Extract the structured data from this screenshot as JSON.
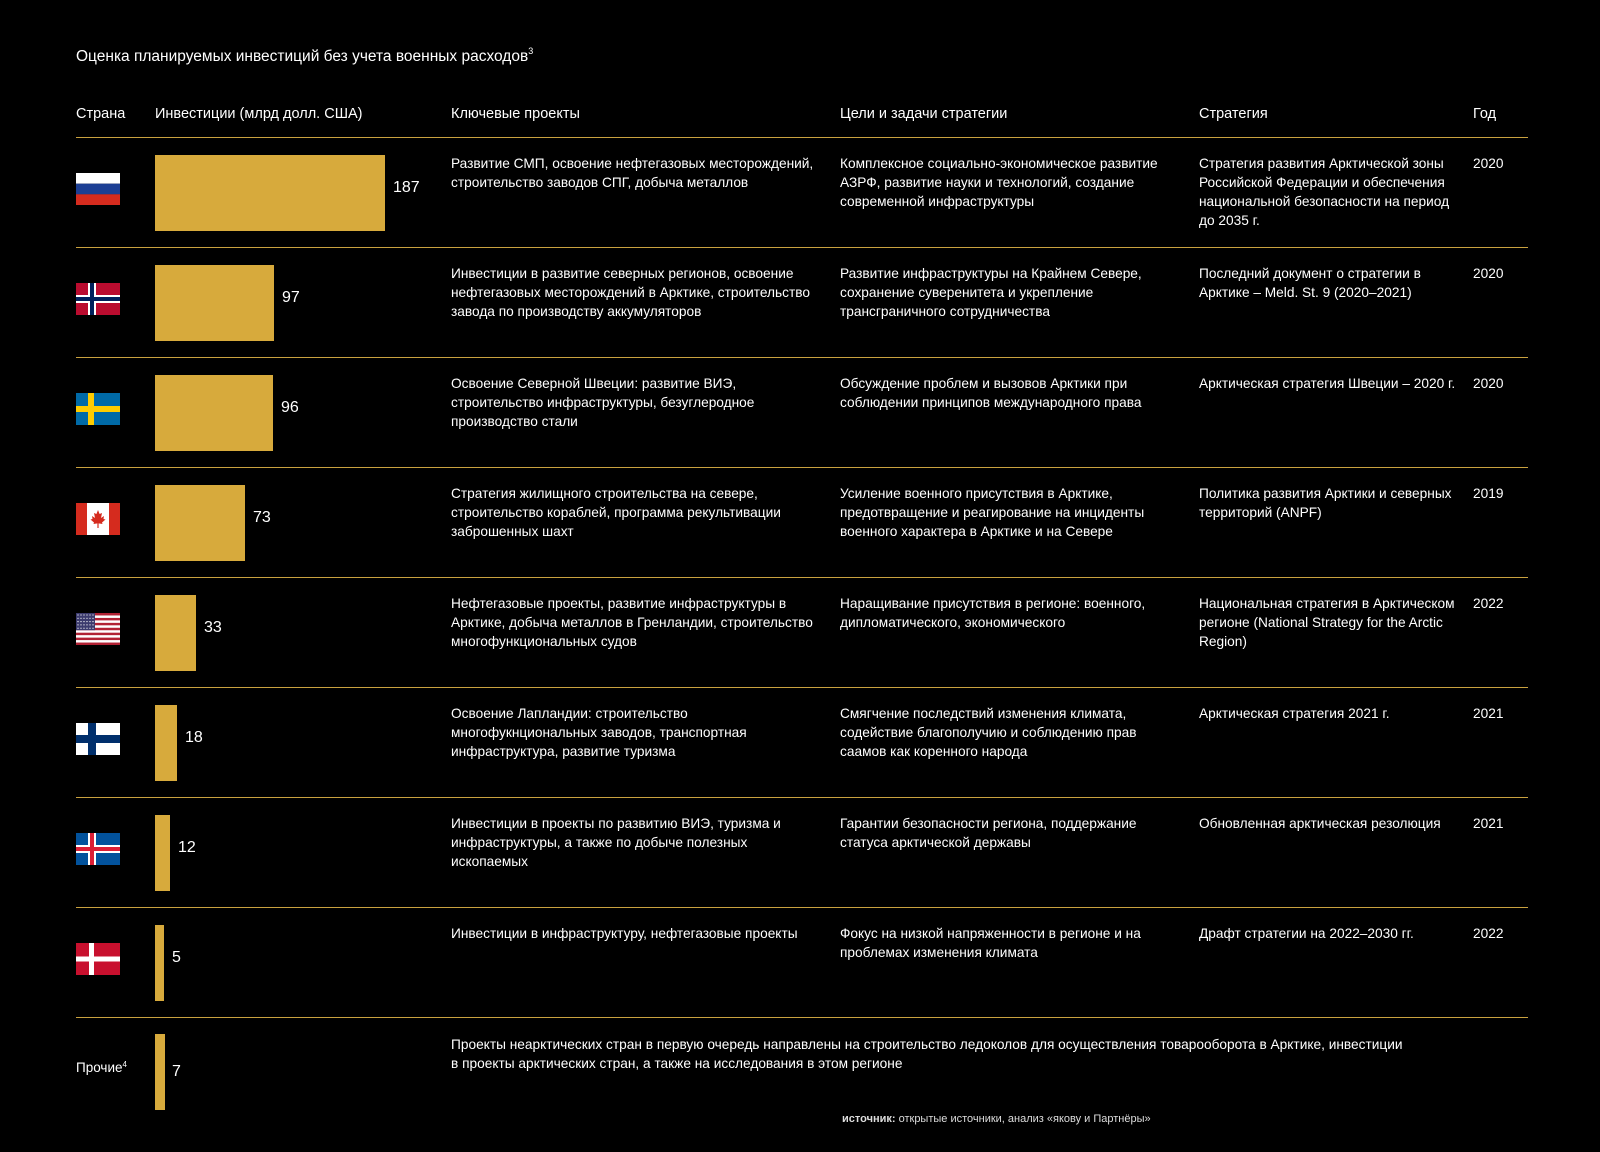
{
  "title": "Оценка планируемых инвестиций без учета военных расходов",
  "title_note": "3",
  "headers": {
    "country": "Страна",
    "investments": "Инвестиции (млрд долл. США)",
    "projects": "Ключевые проекты",
    "goals": "Цели и задачи стратегии",
    "strategy": "Стратегия",
    "year": "Год"
  },
  "colors": {
    "bar": "#d7aa3c",
    "rule": "#c9a23f",
    "background": "#000000"
  },
  "rows": [
    {
      "flag": "russia-flag",
      "value": "187",
      "projects": "Развитие СМП, освоение нефтегазовых месторождений, строительство заводов СПГ, добыча металлов",
      "goals": "Комплексное социально-экономическое развитие АЗРФ, развитие науки и технологий, создание современной инфраструктуры",
      "strategy": "Стратегия развития Арктической зоны Российской Федерации и обеспечения национальной безопасности на период до 2035 г.",
      "year": "2020"
    },
    {
      "flag": "norway-flag",
      "value": "97",
      "projects": "Инвестиции в развитие северных регионов, освоение нефтегазовых месторождений в Арктике, строительство завода по производству аккумуляторов",
      "goals": "Развитие инфраструктуры на Крайнем Севере, сохранение суверенитета и укрепление трансграничного сотрудничества",
      "strategy": "Последний документ о стратегии в Арктике – Meld. St. 9 (2020–2021)",
      "year": "2020"
    },
    {
      "flag": "sweden-flag",
      "value": "96",
      "projects": "Освоение Северной Швеции: развитие ВИЭ, строительство инфраструктуры, безуглеродное производство стали",
      "goals": "Обсуждение проблем и вызовов Арктики при соблюдении принципов международного права",
      "strategy": "Арктическая стратегия Швеции – 2020 г.",
      "year": "2020"
    },
    {
      "flag": "canada-flag",
      "value": "73",
      "projects": "Стратегия жилищного строительства на севере, строительство кораблей, программа рекультивации заброшенных шахт",
      "goals": "Усиление военного присутствия в Арктике, предотвращение и реагирование на инциденты военного характера в Арктике и на Севере",
      "strategy": "Политика развития Арктики и северных территорий (ANPF)",
      "year": "2019"
    },
    {
      "flag": "usa-flag",
      "value": "33",
      "projects": "Нефтегазовые проекты, развитие инфраструктуры в Арктике, добыча металлов в Гренландии, строительство многофункциональных судов",
      "goals": "Наращивание присутствия в регионе: военного, дипломатического, экономического",
      "strategy": "Национальная стратегия в Арктическом регионе (National Strategy for the Arctic Region)",
      "year": "2022"
    },
    {
      "flag": "finland-flag",
      "value": "18",
      "projects": "Освоение Лапландии: строительство многофукнциональных заводов, транспортная инфраструктура, развитие туризма",
      "goals": "Смягчение последствий изменения климата, содействие благополучию и соблюдению прав саамов как коренного народа",
      "strategy": "Арктическая стратегия 2021 г.",
      "year": "2021"
    },
    {
      "flag": "iceland-flag",
      "value": "12",
      "projects": "Инвестиции в проекты по развитию ВИЭ, туризма и инфраструктуры, а также по добыче полезных ископаемых",
      "goals": "Гарантии безопасности региона, поддержание статуса арктической державы",
      "strategy": "Обновленная арктическая резолюция",
      "year": "2021"
    },
    {
      "flag": "denmark-flag",
      "value": "5",
      "projects": "Инвестиции в инфраструктуру, нефтегазовые проекты",
      "goals": "Фокус на низкой напряженности в регионе и на проблемах изменения климата",
      "strategy": "Драфт стратегии на 2022–2030 гг.",
      "year": "2022"
    }
  ],
  "others": {
    "label": "Прочие",
    "note": "4",
    "value": "7",
    "text": "Проекты неарктических стран в первую очередь  направлены на строительство ледоколов для осуществления товарооборота в Арктике, инвестиции в проекты арктических стран, а также на исследования в этом регионе"
  },
  "source": {
    "prefix": "источник:",
    "text": " открытые источники, анализ «якову и Партнёры»"
  },
  "chart_data": {
    "type": "bar",
    "orientation": "horizontal",
    "categories": [
      "russia-flag",
      "norway-flag",
      "sweden-flag",
      "canada-flag",
      "usa-flag",
      "finland-flag",
      "iceland-flag",
      "denmark-flag",
      "Прочие"
    ],
    "values": [
      187,
      97,
      96,
      73,
      33,
      18,
      12,
      5,
      7
    ],
    "title": "Оценка планируемых инвестиций без учета военных расходов",
    "xlabel": "Инвестиции (млрд долл. США)",
    "ylabel": "Страна",
    "xlim": [
      0,
      187
    ],
    "grid": false,
    "legend": "none"
  }
}
